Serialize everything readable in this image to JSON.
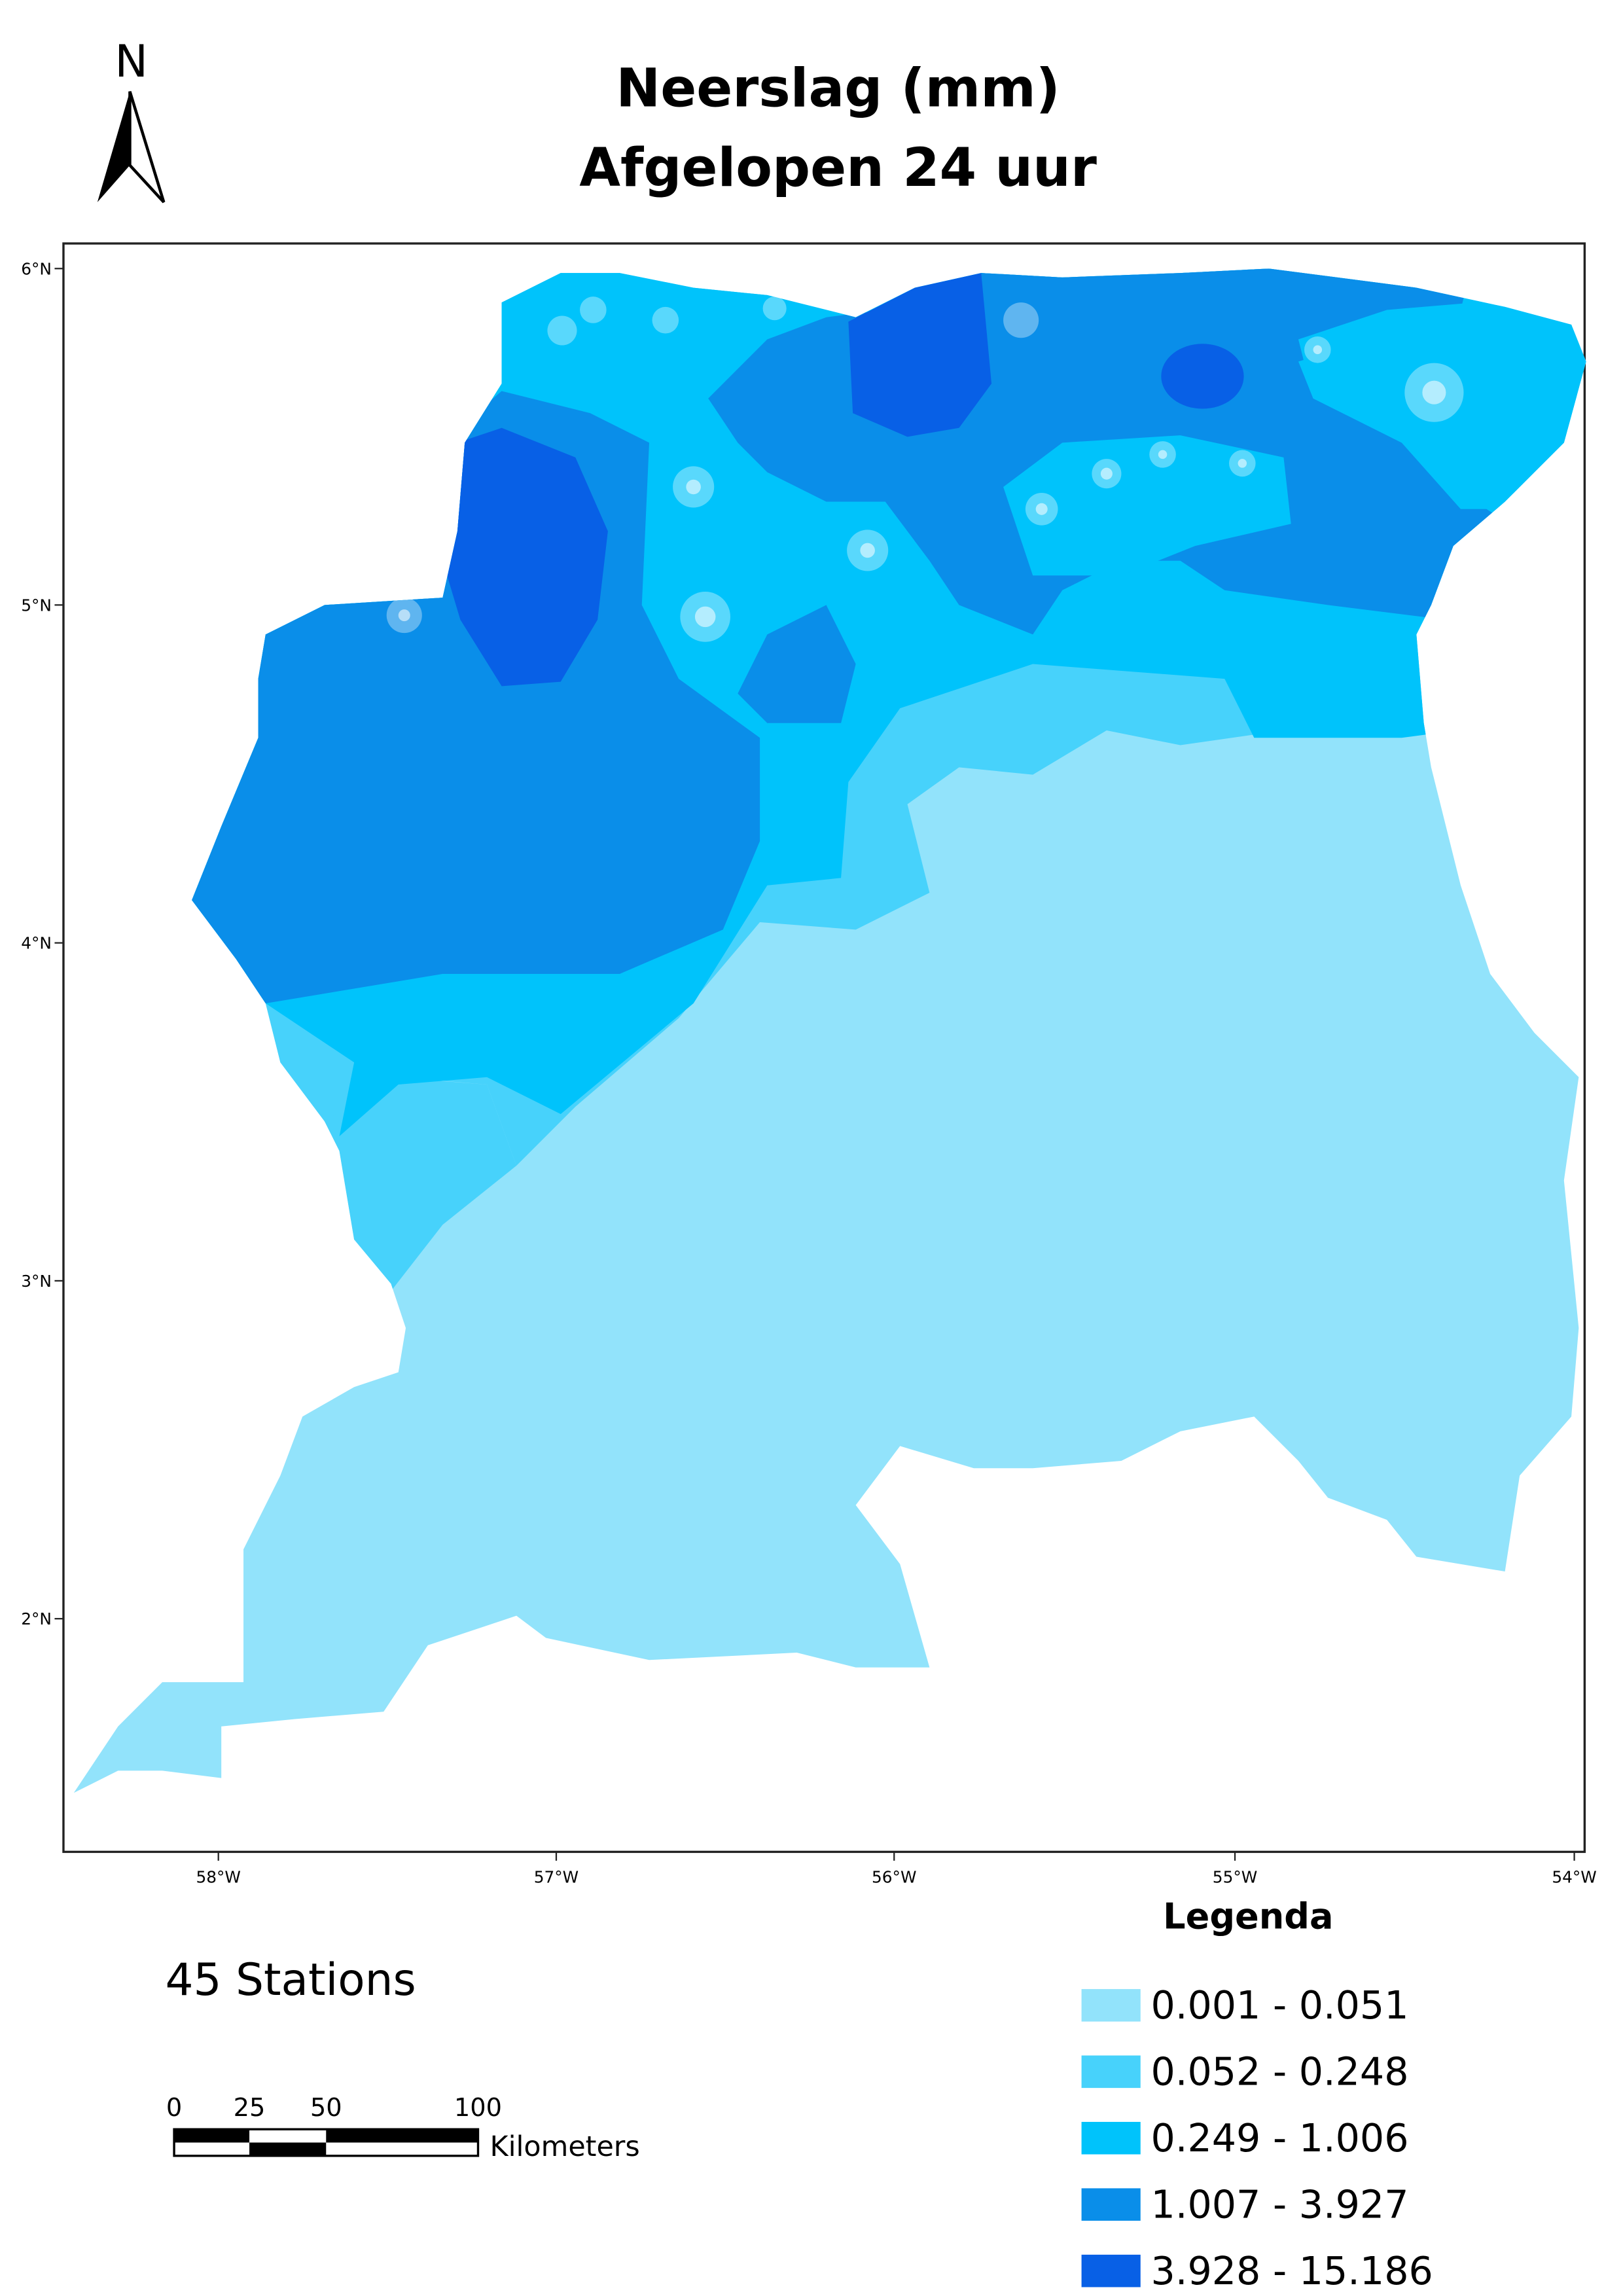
{
  "title": [
    "Neerslag (mm)",
    "Afgelopen 24 uur"
  ],
  "north_label": "N",
  "map": {
    "lat_labels": [
      "6°N",
      "5°N",
      "4°N",
      "3°N",
      "2°N"
    ],
    "lon_labels": [
      "58°W",
      "57°W",
      "56°W",
      "55°W",
      "54°W"
    ]
  },
  "stations_label": "45 Stations",
  "scale_bar": {
    "labels": [
      "0",
      "25",
      "50",
      "100"
    ],
    "unit": "Kilometers"
  },
  "legend": {
    "title": "Legenda",
    "items": [
      {
        "label": "0.001 - 0.051",
        "color": "#92e3fb"
      },
      {
        "label": "0.052 - 0.248",
        "color": "#47d2fb"
      },
      {
        "label": "0.249 - 1.006",
        "color": "#00c3fb"
      },
      {
        "label": "1.007 - 3.927",
        "color": "#0a8ee9"
      },
      {
        "label": "3.928 - 15.186",
        "color": "#0860e6"
      }
    ]
  }
}
